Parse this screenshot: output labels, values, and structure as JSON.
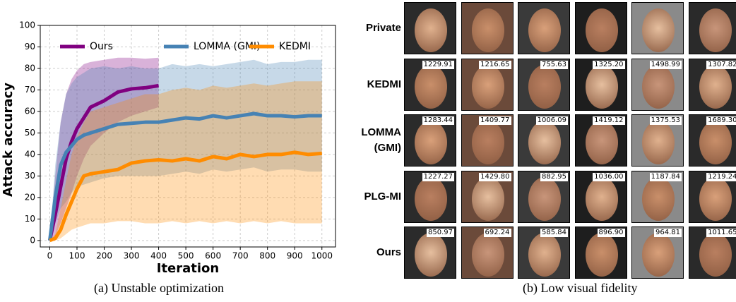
{
  "chart_data": {
    "type": "line",
    "caption": "(a) Unstable optimization",
    "x_label": "Iteration",
    "y_label": "Attack accuracy",
    "x": [
      0,
      20,
      40,
      60,
      80,
      100,
      125,
      150,
      200,
      250,
      300,
      350,
      400,
      450,
      500,
      550,
      600,
      650,
      700,
      750,
      800,
      850,
      900,
      950,
      1000
    ],
    "series": [
      {
        "name": "Ours",
        "color": "#800080",
        "values": [
          0,
          12,
          25,
          38,
          46,
          52,
          57,
          62,
          65,
          69,
          70.5,
          71,
          72,
          null,
          null,
          null,
          null,
          null,
          null,
          null,
          null,
          null,
          null,
          null,
          null
        ],
        "lower": [
          0,
          2,
          8,
          15,
          22,
          30,
          38,
          44,
          50,
          55,
          58,
          60,
          62,
          null,
          null,
          null,
          null,
          null,
          null,
          null,
          null,
          null,
          null,
          null,
          null
        ],
        "upper": [
          0,
          30,
          55,
          68,
          75,
          79,
          82,
          83,
          84,
          85,
          85,
          84.5,
          85,
          null,
          null,
          null,
          null,
          null,
          null,
          null,
          null,
          null,
          null,
          null,
          null
        ]
      },
      {
        "name": "LOMMA (GMI)",
        "color": "#4682b4",
        "values": [
          0,
          20,
          35,
          41,
          44,
          47,
          49,
          50,
          52,
          54,
          54.5,
          55,
          55,
          56,
          57,
          56.5,
          58,
          57,
          58,
          59,
          58,
          58,
          57.5,
          58,
          58
        ],
        "lower": [
          0,
          8,
          15,
          18,
          22,
          25,
          26,
          27,
          29,
          30,
          30,
          30,
          30,
          31,
          32,
          31,
          33,
          32,
          33,
          34,
          32,
          33,
          33,
          32,
          32
        ],
        "upper": [
          0,
          35,
          55,
          68,
          73,
          76,
          78,
          80,
          81,
          80,
          81,
          80,
          80,
          82,
          81,
          82,
          81,
          82,
          83,
          84,
          82,
          83,
          83,
          84,
          84
        ]
      },
      {
        "name": "KEDMI",
        "color": "#ff8c00",
        "values": [
          0,
          1,
          5,
          12,
          18,
          24,
          30,
          31,
          32,
          33,
          36,
          37,
          37.5,
          37,
          38,
          37,
          39,
          38,
          40,
          39,
          40,
          40,
          41,
          40,
          40.5
        ],
        "lower": [
          0,
          0,
          1,
          3,
          5,
          6,
          7,
          8,
          8,
          9,
          9,
          8,
          8,
          9,
          8,
          9,
          8,
          9,
          8,
          9,
          8,
          9,
          8,
          8,
          8
        ],
        "upper": [
          0,
          3,
          15,
          28,
          40,
          48,
          55,
          60,
          62,
          64,
          66,
          68,
          68,
          70,
          71,
          70,
          72,
          71,
          72,
          73,
          72,
          73,
          74,
          74,
          74
        ]
      }
    ],
    "xlim": [
      -35,
      1050
    ],
    "ylim": [
      -3,
      100
    ],
    "xticks": [
      0,
      100,
      200,
      300,
      400,
      500,
      600,
      700,
      800,
      900,
      1000
    ],
    "yticks": [
      0,
      10,
      20,
      30,
      40,
      50,
      60,
      70,
      80,
      90,
      100
    ],
    "grid": true,
    "legend": "upper center"
  },
  "face_grid": {
    "caption": "(b) Low visual fidelity",
    "rows": [
      {
        "label": "Private"
      },
      {
        "label": "KEDMI",
        "scores": [
          "1229.91",
          "1216.65",
          "755.63",
          "1325.20",
          "1498.99",
          "1307.82"
        ]
      },
      {
        "label": "LOMMA (GMI)",
        "scores": [
          "1283.44",
          "1409.77",
          "1006.09",
          "1419.12",
          "1375.53",
          "1689.30"
        ]
      },
      {
        "label": "PLG-MI",
        "scores": [
          "1227.27",
          "1429.80",
          "882.95",
          "1036.00",
          "1187.84",
          "1219.24"
        ]
      },
      {
        "label": "Ours",
        "scores": [
          "850.97",
          "692.24",
          "585.84",
          "896.90",
          "964.81",
          "1011.65"
        ]
      }
    ]
  }
}
